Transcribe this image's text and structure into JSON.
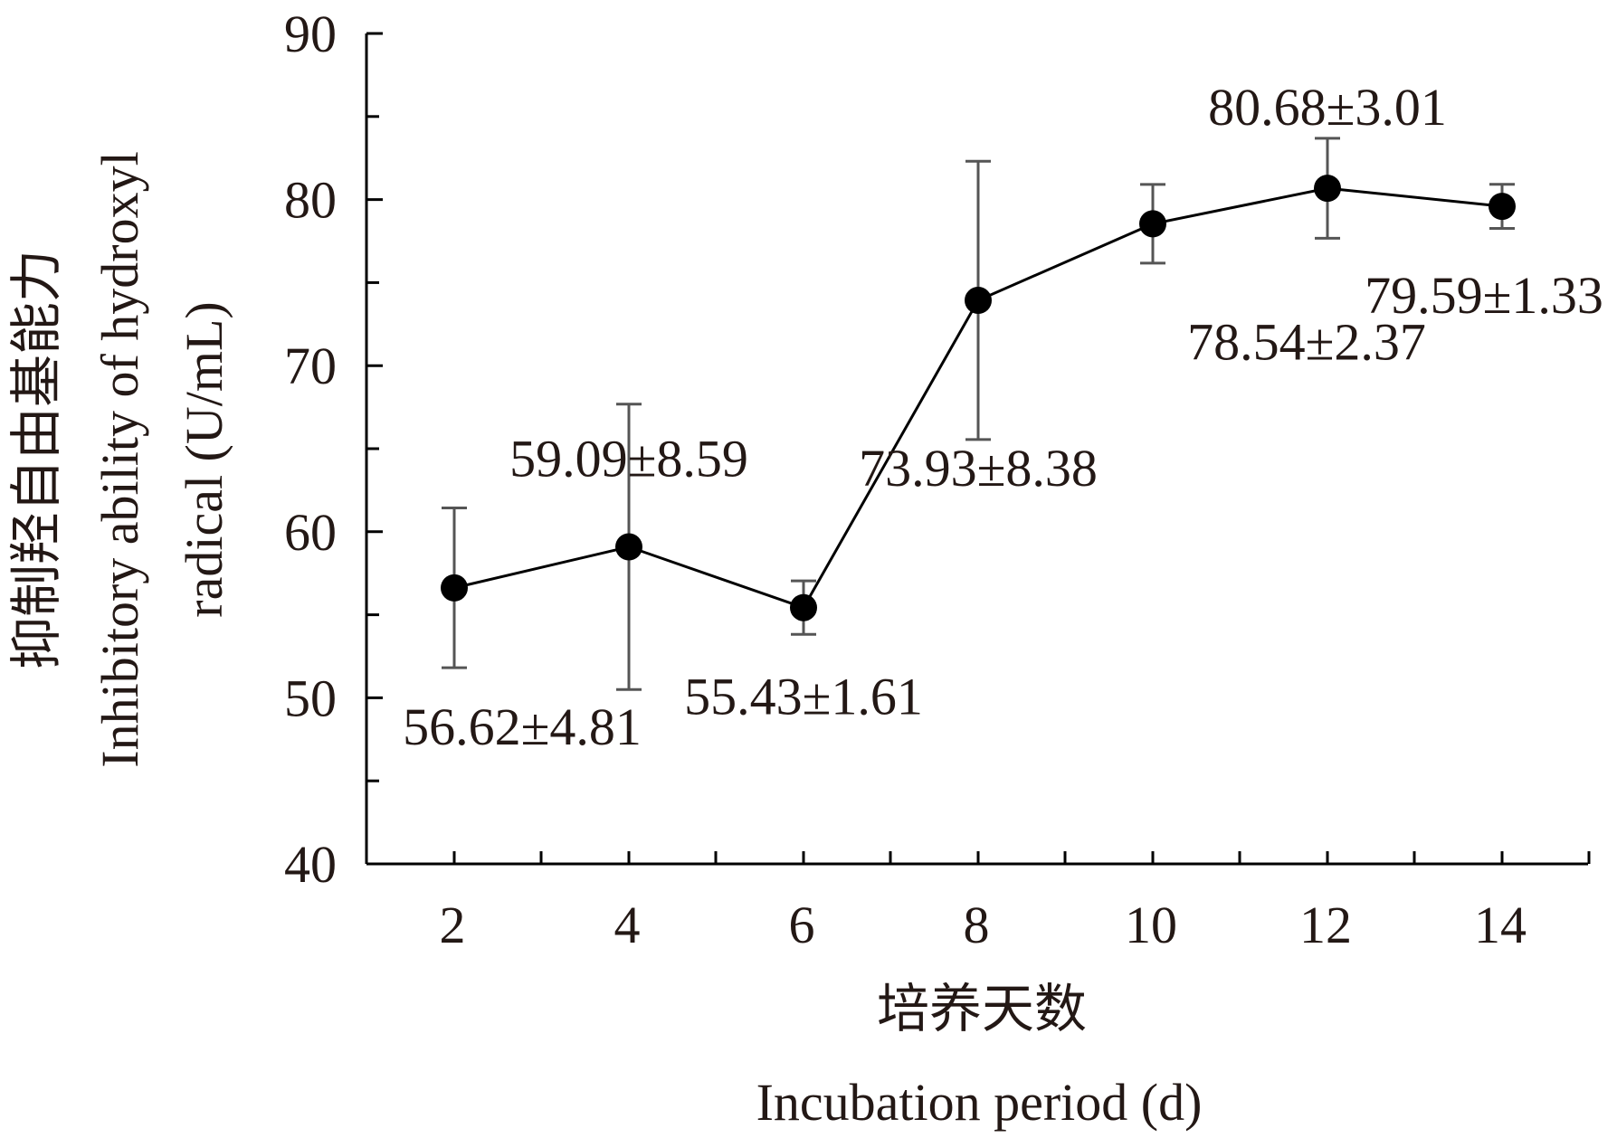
{
  "chart_data": {
    "type": "line",
    "title": "",
    "xlabel_cn": "培养天数",
    "xlabel_en": "Incubation period (d)",
    "ylabel_cn": "抑制羟自由基能力",
    "ylabel_en_line1": "Inhibitory ability of hydroxyl",
    "ylabel_en_line2": "radical (U/mL)",
    "x": [
      2,
      4,
      6,
      8,
      10,
      12,
      14
    ],
    "x_tick_labels": [
      "2",
      "4",
      "6",
      "8",
      "10",
      "12",
      "14"
    ],
    "ylim": [
      40,
      90
    ],
    "y_ticks": [
      40,
      50,
      60,
      70,
      80,
      90
    ],
    "y_tick_labels": [
      "40",
      "50",
      "60",
      "70",
      "80",
      "90"
    ],
    "series": [
      {
        "name": "Inhibitory ability of hydroxyl radical",
        "values": [
          56.62,
          59.09,
          55.43,
          73.93,
          78.54,
          80.68,
          79.59
        ],
        "errors": [
          4.81,
          8.59,
          1.61,
          8.38,
          2.37,
          3.01,
          1.33
        ],
        "labels": [
          "56.62±4.81",
          "59.09±8.59",
          "55.43±1.61",
          "73.93±8.38",
          "78.54±2.37",
          "80.68±3.01",
          "79.59±1.33"
        ],
        "label_positions": [
          "below",
          "above",
          "below",
          "below",
          "below-right",
          "above",
          "below"
        ]
      }
    ],
    "colors": {
      "line": "#000000",
      "marker": "#000000",
      "error_bar": "#555555",
      "axis": "#000000",
      "text": "#231815"
    },
    "grid": false
  }
}
